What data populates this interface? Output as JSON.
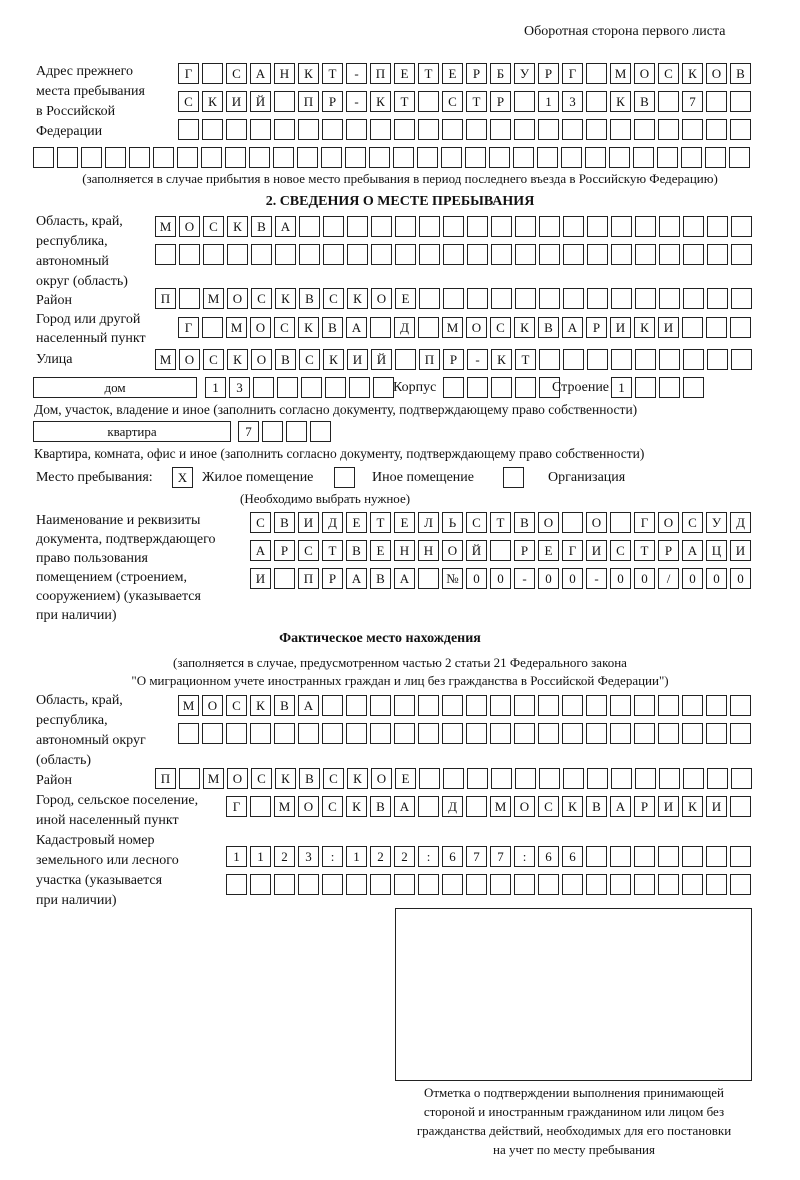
{
  "header": "Оборотная сторона первого листа",
  "previous_address": {
    "label": [
      "Адрес прежнего",
      "места пребывания",
      "в Российской",
      "Федерации"
    ],
    "rows": [
      [
        "Г",
        "",
        "С",
        "А",
        "Н",
        "К",
        "Т",
        "-",
        "П",
        "Е",
        "Т",
        "Е",
        "Р",
        "Б",
        "У",
        "Р",
        "Г",
        "",
        "М",
        "О",
        "С",
        "К",
        "О",
        "В"
      ],
      [
        "С",
        "К",
        "И",
        "Й",
        "",
        "П",
        "Р",
        "-",
        "К",
        "Т",
        "",
        "С",
        "Т",
        "Р",
        "",
        "1",
        "3",
        "",
        "К",
        "В",
        "",
        "7",
        "",
        ""
      ],
      [
        "",
        "",
        "",
        "",
        "",
        "",
        "",
        "",
        "",
        "",
        "",
        "",
        "",
        "",
        "",
        "",
        "",
        "",
        "",
        "",
        "",
        "",
        "",
        ""
      ],
      [
        "",
        "",
        "",
        "",
        "",
        "",
        "",
        "",
        "",
        "",
        "",
        "",
        "",
        "",
        "",
        "",
        "",
        "",
        "",
        "",
        "",
        "",
        "",
        "",
        "",
        "",
        "",
        "",
        "",
        ""
      ]
    ],
    "note": "(заполняется в случае прибытия в новое место пребывания в период последнего въезда в Российскую Федерацию)"
  },
  "section2": {
    "title": "2. СВЕДЕНИЯ О МЕСТЕ ПРЕБЫВАНИЯ",
    "region_label": [
      "Область, край,",
      "республика,",
      "автономный",
      "округ (область)"
    ],
    "region_rows": [
      [
        "М",
        "О",
        "С",
        "К",
        "В",
        "А",
        "",
        "",
        "",
        "",
        "",
        "",
        "",
        "",
        "",
        "",
        "",
        "",
        "",
        "",
        "",
        "",
        "",
        "",
        ""
      ],
      [
        "",
        "",
        "",
        "",
        "",
        "",
        "",
        "",
        "",
        "",
        "",
        "",
        "",
        "",
        "",
        "",
        "",
        "",
        "",
        "",
        "",
        "",
        "",
        "",
        ""
      ]
    ],
    "district_label": "Район",
    "district": [
      "П",
      "",
      "М",
      "О",
      "С",
      "К",
      "В",
      "С",
      "К",
      "О",
      "Е",
      "",
      "",
      "",
      "",
      "",
      "",
      "",
      "",
      "",
      "",
      "",
      "",
      "",
      ""
    ],
    "city_label": [
      "Город или другой",
      "населенный пункт"
    ],
    "city": [
      "Г",
      "",
      "М",
      "О",
      "С",
      "К",
      "В",
      "А",
      "",
      "Д",
      "",
      "М",
      "О",
      "С",
      "К",
      "В",
      "А",
      "Р",
      "И",
      "К",
      "И",
      "",
      "",
      ""
    ],
    "street_label": "Улица",
    "street": [
      "М",
      "О",
      "С",
      "К",
      "О",
      "В",
      "С",
      "К",
      "И",
      "Й",
      "",
      "П",
      "Р",
      "-",
      "К",
      "Т",
      "",
      "",
      "",
      "",
      "",
      "",
      "",
      "",
      ""
    ],
    "house_type": "дом",
    "house": [
      "1",
      "3",
      "",
      "",
      "",
      "",
      "",
      ""
    ],
    "korpus_label": "Корпус",
    "korpus": [
      "",
      "",
      "",
      "",
      ""
    ],
    "building_label": "Строение",
    "building": [
      "1",
      "",
      "",
      ""
    ],
    "house_note": "Дом, участок, владение и иное (заполнить согласно документу, подтверждающему право собственности)",
    "apartment_type": "квартира",
    "apartment": [
      "7",
      "",
      "",
      ""
    ],
    "apartment_note": "Квартира, комната, офис и иное (заполнить согласно документу, подтверждающему право собственности)",
    "stay_place_label": "Место пребывания:",
    "options": [
      {
        "mark": "X",
        "label": "Жилое помещение"
      },
      {
        "mark": "",
        "label": "Иное помещение"
      },
      {
        "mark": "",
        "label": "Организация"
      }
    ],
    "choose_note": "(Необходимо выбрать нужное)",
    "doc_label": [
      "Наименование и реквизиты",
      "документа, подтверждающего",
      "право пользования",
      "помещением (строением,",
      "сооружением) (указывается",
      "при наличии)"
    ],
    "doc_rows": [
      [
        "С",
        "В",
        "И",
        "Д",
        "Е",
        "Т",
        "Е",
        "Л",
        "Ь",
        "С",
        "Т",
        "В",
        "О",
        "",
        "О",
        "",
        "Г",
        "О",
        "С",
        "У",
        "Д"
      ],
      [
        "А",
        "Р",
        "С",
        "Т",
        "В",
        "Е",
        "Н",
        "Н",
        "О",
        "Й",
        "",
        "Р",
        "Е",
        "Г",
        "И",
        "С",
        "Т",
        "Р",
        "А",
        "Ц",
        "И"
      ],
      [
        "И",
        "",
        "П",
        "Р",
        "А",
        "В",
        "А",
        "",
        "№",
        "0",
        "0",
        "-",
        "0",
        "0",
        "-",
        "0",
        "0",
        "/",
        "0",
        "0",
        "0"
      ]
    ]
  },
  "actual": {
    "title": "Фактическое место нахождения",
    "note": [
      "(заполняется в случае, предусмотренном частью 2 статьи 21 Федерального закона",
      "\"О миграционном учете иностранных граждан и лиц без гражданства в Российской Федерации\")"
    ],
    "region_label": [
      "Область, край,",
      "республика,",
      "автономный округ",
      "(область)"
    ],
    "region_rows": [
      [
        "М",
        "О",
        "С",
        "К",
        "В",
        "А",
        "",
        "",
        "",
        "",
        "",
        "",
        "",
        "",
        "",
        "",
        "",
        "",
        "",
        "",
        "",
        "",
        "",
        ""
      ],
      [
        "",
        "",
        "",
        "",
        "",
        "",
        "",
        "",
        "",
        "",
        "",
        "",
        "",
        "",
        "",
        "",
        "",
        "",
        "",
        "",
        "",
        "",
        "",
        ""
      ]
    ],
    "district_label": "Район",
    "district": [
      "П",
      "",
      "М",
      "О",
      "С",
      "К",
      "В",
      "С",
      "К",
      "О",
      "Е",
      "",
      "",
      "",
      "",
      "",
      "",
      "",
      "",
      "",
      "",
      "",
      "",
      "",
      ""
    ],
    "city_label": [
      "Город, сельское поселение,",
      "иной населенный пункт"
    ],
    "city": [
      "Г",
      "",
      "М",
      "О",
      "С",
      "К",
      "В",
      "А",
      "",
      "Д",
      "",
      "М",
      "О",
      "С",
      "К",
      "В",
      "А",
      "Р",
      "И",
      "К",
      "И",
      ""
    ],
    "cadastre_label": [
      "Кадастровый номер",
      "земельного или лесного",
      "участка (указывается",
      "при наличии)"
    ],
    "cadastre_rows": [
      [
        "1",
        "1",
        "2",
        "3",
        ":",
        "1",
        "2",
        "2",
        ":",
        "6",
        "7",
        "7",
        ":",
        "6",
        "6",
        "",
        "",
        "",
        "",
        "",
        "",
        ""
      ],
      [
        "",
        "",
        "",
        "",
        "",
        "",
        "",
        "",
        "",
        "",
        "",
        "",
        "",
        "",
        "",
        "",
        "",
        "",
        "",
        "",
        "",
        ""
      ]
    ]
  },
  "stamp_caption": [
    "Отметка о подтверждении выполнения принимающей",
    "стороной и иностранным гражданином или лицом без",
    "гражданства действий, необходимых для его постановки",
    "на учет по месту пребывания"
  ]
}
